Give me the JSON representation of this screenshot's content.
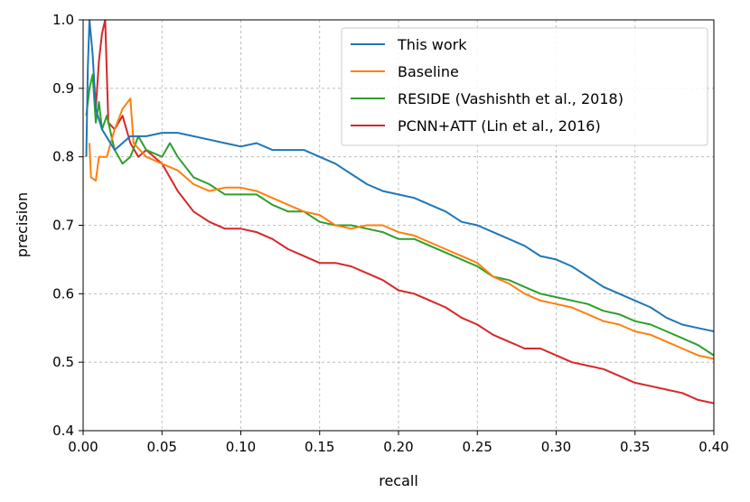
{
  "chart_data": {
    "type": "line",
    "title": "",
    "xlabel": "recall",
    "ylabel": "precision",
    "xlim": [
      0.0,
      0.4
    ],
    "ylim": [
      0.4,
      1.0
    ],
    "x_ticks": [
      "0.00",
      "0.05",
      "0.10",
      "0.15",
      "0.20",
      "0.25",
      "0.30",
      "0.35",
      "0.40"
    ],
    "y_ticks": [
      "0.4",
      "0.5",
      "0.6",
      "0.7",
      "0.8",
      "0.9",
      "1.0"
    ],
    "grid": true,
    "legend_position": "top-right",
    "series": [
      {
        "name": "This work",
        "color": "#1f77b4",
        "points": [
          [
            0.002,
            0.8
          ],
          [
            0.003,
            0.93
          ],
          [
            0.004,
            1.0
          ],
          [
            0.006,
            0.95
          ],
          [
            0.008,
            0.87
          ],
          [
            0.012,
            0.84
          ],
          [
            0.02,
            0.81
          ],
          [
            0.03,
            0.83
          ],
          [
            0.04,
            0.83
          ],
          [
            0.05,
            0.835
          ],
          [
            0.06,
            0.835
          ],
          [
            0.07,
            0.83
          ],
          [
            0.08,
            0.825
          ],
          [
            0.09,
            0.82
          ],
          [
            0.1,
            0.815
          ],
          [
            0.11,
            0.82
          ],
          [
            0.12,
            0.81
          ],
          [
            0.13,
            0.81
          ],
          [
            0.14,
            0.81
          ],
          [
            0.15,
            0.8
          ],
          [
            0.16,
            0.79
          ],
          [
            0.17,
            0.775
          ],
          [
            0.18,
            0.76
          ],
          [
            0.19,
            0.75
          ],
          [
            0.2,
            0.745
          ],
          [
            0.21,
            0.74
          ],
          [
            0.22,
            0.73
          ],
          [
            0.23,
            0.72
          ],
          [
            0.24,
            0.705
          ],
          [
            0.25,
            0.7
          ],
          [
            0.26,
            0.69
          ],
          [
            0.27,
            0.68
          ],
          [
            0.28,
            0.67
          ],
          [
            0.29,
            0.655
          ],
          [
            0.3,
            0.65
          ],
          [
            0.31,
            0.64
          ],
          [
            0.32,
            0.625
          ],
          [
            0.33,
            0.61
          ],
          [
            0.34,
            0.6
          ],
          [
            0.35,
            0.59
          ],
          [
            0.36,
            0.58
          ],
          [
            0.37,
            0.565
          ],
          [
            0.38,
            0.555
          ],
          [
            0.39,
            0.55
          ],
          [
            0.4,
            0.545
          ]
        ]
      },
      {
        "name": "Baseline",
        "color": "#ff7f0e",
        "points": [
          [
            0.004,
            0.82
          ],
          [
            0.005,
            0.77
          ],
          [
            0.008,
            0.765
          ],
          [
            0.01,
            0.8
          ],
          [
            0.015,
            0.8
          ],
          [
            0.02,
            0.84
          ],
          [
            0.025,
            0.87
          ],
          [
            0.03,
            0.885
          ],
          [
            0.032,
            0.82
          ],
          [
            0.04,
            0.8
          ],
          [
            0.05,
            0.79
          ],
          [
            0.06,
            0.78
          ],
          [
            0.07,
            0.76
          ],
          [
            0.08,
            0.75
          ],
          [
            0.09,
            0.755
          ],
          [
            0.1,
            0.755
          ],
          [
            0.11,
            0.75
          ],
          [
            0.12,
            0.74
          ],
          [
            0.13,
            0.73
          ],
          [
            0.14,
            0.72
          ],
          [
            0.15,
            0.715
          ],
          [
            0.16,
            0.7
          ],
          [
            0.17,
            0.695
          ],
          [
            0.18,
            0.7
          ],
          [
            0.19,
            0.7
          ],
          [
            0.2,
            0.69
          ],
          [
            0.21,
            0.685
          ],
          [
            0.22,
            0.675
          ],
          [
            0.23,
            0.665
          ],
          [
            0.24,
            0.655
          ],
          [
            0.25,
            0.645
          ],
          [
            0.26,
            0.625
          ],
          [
            0.27,
            0.615
          ],
          [
            0.28,
            0.6
          ],
          [
            0.29,
            0.59
          ],
          [
            0.3,
            0.585
          ],
          [
            0.31,
            0.58
          ],
          [
            0.32,
            0.57
          ],
          [
            0.33,
            0.56
          ],
          [
            0.34,
            0.555
          ],
          [
            0.35,
            0.545
          ],
          [
            0.36,
            0.54
          ],
          [
            0.37,
            0.53
          ],
          [
            0.38,
            0.52
          ],
          [
            0.39,
            0.51
          ],
          [
            0.4,
            0.505
          ]
        ]
      },
      {
        "name": "RESIDE (Vashishth et al., 2018)",
        "color": "#2ca02c",
        "points": [
          [
            0.002,
            0.86
          ],
          [
            0.004,
            0.9
          ],
          [
            0.006,
            0.92
          ],
          [
            0.008,
            0.85
          ],
          [
            0.01,
            0.88
          ],
          [
            0.012,
            0.84
          ],
          [
            0.015,
            0.86
          ],
          [
            0.02,
            0.81
          ],
          [
            0.025,
            0.79
          ],
          [
            0.03,
            0.8
          ],
          [
            0.035,
            0.83
          ],
          [
            0.04,
            0.81
          ],
          [
            0.05,
            0.8
          ],
          [
            0.055,
            0.82
          ],
          [
            0.06,
            0.8
          ],
          [
            0.07,
            0.77
          ],
          [
            0.08,
            0.76
          ],
          [
            0.09,
            0.745
          ],
          [
            0.1,
            0.745
          ],
          [
            0.11,
            0.745
          ],
          [
            0.12,
            0.73
          ],
          [
            0.13,
            0.72
          ],
          [
            0.14,
            0.72
          ],
          [
            0.15,
            0.705
          ],
          [
            0.16,
            0.7
          ],
          [
            0.17,
            0.7
          ],
          [
            0.18,
            0.695
          ],
          [
            0.19,
            0.69
          ],
          [
            0.2,
            0.68
          ],
          [
            0.21,
            0.68
          ],
          [
            0.22,
            0.67
          ],
          [
            0.23,
            0.66
          ],
          [
            0.24,
            0.65
          ],
          [
            0.25,
            0.64
          ],
          [
            0.26,
            0.625
          ],
          [
            0.27,
            0.62
          ],
          [
            0.28,
            0.61
          ],
          [
            0.29,
            0.6
          ],
          [
            0.3,
            0.595
          ],
          [
            0.31,
            0.59
          ],
          [
            0.32,
            0.585
          ],
          [
            0.33,
            0.575
          ],
          [
            0.34,
            0.57
          ],
          [
            0.35,
            0.56
          ],
          [
            0.36,
            0.555
          ],
          [
            0.37,
            0.545
          ],
          [
            0.38,
            0.535
          ],
          [
            0.39,
            0.525
          ],
          [
            0.4,
            0.51
          ]
        ]
      },
      {
        "name": "PCNN+ATT (Lin et al., 2016)",
        "color": "#d62728",
        "points": [
          [
            0.008,
            0.87
          ],
          [
            0.01,
            0.94
          ],
          [
            0.012,
            0.98
          ],
          [
            0.014,
            1.0
          ],
          [
            0.016,
            0.85
          ],
          [
            0.02,
            0.84
          ],
          [
            0.025,
            0.86
          ],
          [
            0.03,
            0.82
          ],
          [
            0.035,
            0.8
          ],
          [
            0.04,
            0.81
          ],
          [
            0.045,
            0.8
          ],
          [
            0.05,
            0.79
          ],
          [
            0.055,
            0.77
          ],
          [
            0.06,
            0.75
          ],
          [
            0.07,
            0.72
          ],
          [
            0.08,
            0.705
          ],
          [
            0.09,
            0.695
          ],
          [
            0.1,
            0.695
          ],
          [
            0.11,
            0.69
          ],
          [
            0.12,
            0.68
          ],
          [
            0.13,
            0.665
          ],
          [
            0.14,
            0.655
          ],
          [
            0.15,
            0.645
          ],
          [
            0.16,
            0.645
          ],
          [
            0.17,
            0.64
          ],
          [
            0.18,
            0.63
          ],
          [
            0.19,
            0.62
          ],
          [
            0.2,
            0.605
          ],
          [
            0.21,
            0.6
          ],
          [
            0.22,
            0.59
          ],
          [
            0.23,
            0.58
          ],
          [
            0.24,
            0.565
          ],
          [
            0.25,
            0.555
          ],
          [
            0.26,
            0.54
          ],
          [
            0.27,
            0.53
          ],
          [
            0.28,
            0.52
          ],
          [
            0.29,
            0.52
          ],
          [
            0.3,
            0.51
          ],
          [
            0.31,
            0.5
          ],
          [
            0.32,
            0.495
          ],
          [
            0.33,
            0.49
          ],
          [
            0.34,
            0.48
          ],
          [
            0.35,
            0.47
          ],
          [
            0.36,
            0.465
          ],
          [
            0.37,
            0.46
          ],
          [
            0.38,
            0.455
          ],
          [
            0.39,
            0.445
          ],
          [
            0.4,
            0.44
          ]
        ]
      }
    ]
  }
}
